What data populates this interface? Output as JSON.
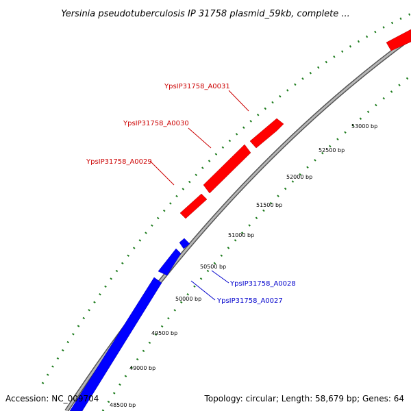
{
  "map": {
    "title": "Yersinia pseudotuberculosis IP 31758 plasmid_59kb, complete ...",
    "accession": "Accession: NC_009704",
    "summary": "Topology: circular; Length: 58,679 bp; Genes: 64",
    "colors": {
      "forward": "#ff0000",
      "reverse": "#0000ff",
      "backbone": "#7f7f7f",
      "ticks": "#1a7a1a",
      "forward_label": "#cc0000",
      "reverse_label": "#0000cc"
    },
    "scale_ticks": [
      "48500 bp",
      "49000 bp",
      "49500 bp",
      "50000 bp",
      "50500 bp",
      "51000 bp",
      "51500 bp",
      "52000 bp",
      "52500 bp",
      "53000 bp"
    ],
    "forward_gene_labels": [
      "YpsIP31758_A0031",
      "YpsIP31758_A0030",
      "YpsIP31758_A0029"
    ],
    "reverse_gene_labels": [
      "YpsIP31758_A0028",
      "YpsIP31758_A0027"
    ]
  }
}
